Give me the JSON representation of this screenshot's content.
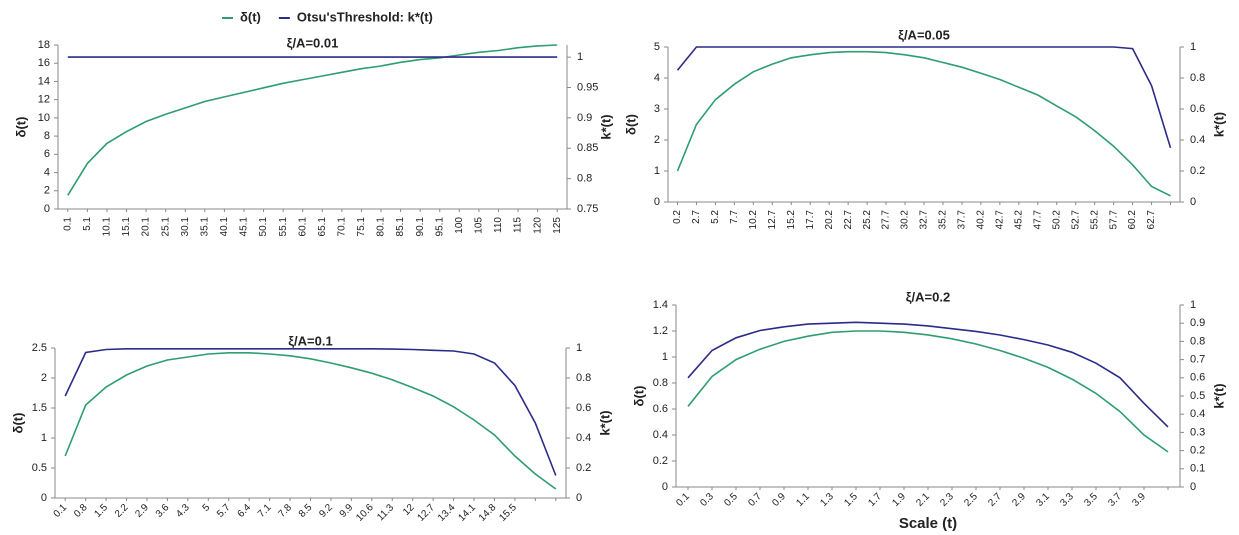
{
  "chart_data": [
    {
      "type": "line",
      "title": "ξ/A=0.01",
      "ylabel": "δ(t)",
      "y2label": "k*(t)",
      "legend": "top",
      "categories": [
        "0.1",
        "5.1",
        "10.1",
        "15.1",
        "20.1",
        "25.1",
        "30.1",
        "35.1",
        "40.1",
        "45.1",
        "50.1",
        "55.1",
        "60.1",
        "65.1",
        "70.1",
        "75.1",
        "80.1",
        "85.1",
        "90.1",
        "95.1",
        "100",
        "105",
        "110",
        "115",
        "120",
        "125"
      ],
      "series": [
        {
          "name": "δ(t)",
          "color": "#2e9e6e",
          "values": [
            1.5,
            5,
            7.2,
            8.5,
            9.6,
            10.4,
            11.1,
            11.8,
            12.3,
            12.8,
            13.3,
            13.8,
            14.2,
            14.6,
            15.0,
            15.4,
            15.7,
            16.1,
            16.4,
            16.6,
            16.9,
            17.2,
            17.4,
            17.7,
            17.9,
            18.0
          ]
        },
        {
          "name": "Otsu'sThreshold: k*(t)",
          "color": "#2b2b8a",
          "axis": "y2",
          "values": [
            1,
            1,
            1,
            1,
            1,
            1,
            1,
            1,
            1,
            1,
            1,
            1,
            1,
            1,
            1,
            1,
            1,
            1,
            1,
            1,
            1,
            1,
            1,
            1,
            1,
            1
          ]
        }
      ],
      "ylim": [
        0,
        18
      ],
      "yticks": [
        0,
        2,
        4,
        6,
        8,
        10,
        12,
        14,
        16,
        18
      ],
      "y2lim": [
        0.75,
        1.02
      ],
      "y2ticks": [
        0.75,
        0.8,
        0.85,
        0.9,
        0.95,
        1
      ]
    },
    {
      "type": "line",
      "title": "ξ/A=0.05",
      "ylabel": "δ(t)",
      "y2label": "k*(t)",
      "categories": [
        "0.2",
        "2.7",
        "5.2",
        "7.7",
        "10.2",
        "12.7",
        "15.2",
        "17.7",
        "20.2",
        "22.7",
        "25.2",
        "27.7",
        "30.2",
        "32.7",
        "35.2",
        "37.7",
        "40.2",
        "42.7",
        "45.2",
        "47.7",
        "50.2",
        "52.7",
        "55.2",
        "57.7",
        "60.2",
        "62.7",
        null
      ],
      "series": [
        {
          "color": "#2e9e6e",
          "values": [
            1.0,
            2.5,
            3.3,
            3.8,
            4.2,
            4.45,
            4.65,
            4.75,
            4.82,
            4.85,
            4.85,
            4.82,
            4.75,
            4.65,
            4.5,
            4.35,
            4.15,
            3.95,
            3.7,
            3.45,
            3.1,
            2.75,
            2.3,
            1.8,
            1.2,
            0.5,
            0.2
          ]
        },
        {
          "color": "#2b2b8a",
          "axis": "y2",
          "values": [
            0.85,
            1,
            1,
            1,
            1,
            1,
            1,
            1,
            1,
            1,
            1,
            1,
            1,
            1,
            1,
            1,
            1,
            1,
            1,
            1,
            1,
            1,
            1,
            1,
            0.99,
            0.75,
            0.35
          ]
        }
      ],
      "ylim": [
        0,
        5
      ],
      "yticks": [
        0,
        1,
        2,
        3,
        4,
        5
      ],
      "y2lim": [
        0,
        1
      ],
      "y2ticks": [
        0,
        0.2,
        0.4,
        0.6,
        0.8,
        1
      ]
    },
    {
      "type": "line",
      "title": "ξ/A=0.1",
      "ylabel": "δ(t)",
      "y2label": "k*(t)",
      "categories": [
        "0.1",
        "0.8",
        "1.5",
        "2.2",
        "2.9",
        "3.6",
        "4.3",
        "5",
        "5.7",
        "6.4",
        "7.1",
        "7.8",
        "8.5",
        "9.2",
        "9.9",
        "10.6",
        "11.3",
        "12",
        "12.7",
        "13.4",
        "14.1",
        "14.8",
        "15.5",
        null,
        null
      ],
      "series": [
        {
          "color": "#2e9e6e",
          "values": [
            0.7,
            1.55,
            1.85,
            2.05,
            2.2,
            2.3,
            2.35,
            2.4,
            2.42,
            2.42,
            2.4,
            2.37,
            2.32,
            2.25,
            2.17,
            2.08,
            1.97,
            1.84,
            1.7,
            1.52,
            1.3,
            1.05,
            0.7,
            0.4,
            0.15
          ]
        },
        {
          "color": "#2b2b8a",
          "axis": "y2",
          "values": [
            0.68,
            0.97,
            0.99,
            0.995,
            0.995,
            0.995,
            0.995,
            0.995,
            0.995,
            0.995,
            0.995,
            0.995,
            0.995,
            0.995,
            0.995,
            0.995,
            0.993,
            0.99,
            0.985,
            0.98,
            0.96,
            0.9,
            0.75,
            0.5,
            0.15
          ]
        }
      ],
      "ylim": [
        0,
        2.5
      ],
      "yticks": [
        0,
        0.5,
        1,
        1.5,
        2,
        2.5
      ],
      "y2lim": [
        0,
        1
      ],
      "y2ticks": [
        0,
        0.2,
        0.4,
        0.6,
        0.8,
        1
      ]
    },
    {
      "type": "line",
      "title": "ξ/A=0.2",
      "ylabel": "δ(t)",
      "y2label": "k*(t)",
      "xlabel": "Scale (t)",
      "categories": [
        "0.1",
        "0.3",
        "0.5",
        "0.7",
        "0.9",
        "1.1",
        "1.3",
        "1.5",
        "1.7",
        "1.9",
        "2.1",
        "2.3",
        "2.5",
        "2.7",
        "2.9",
        "3.1",
        "3.3",
        "3.5",
        "3.7",
        "3.9",
        null
      ],
      "series": [
        {
          "color": "#2e9e6e",
          "values": [
            0.62,
            0.85,
            0.98,
            1.06,
            1.12,
            1.16,
            1.19,
            1.2,
            1.2,
            1.19,
            1.17,
            1.14,
            1.1,
            1.05,
            0.99,
            0.92,
            0.83,
            0.72,
            0.58,
            0.4,
            0.27
          ]
        },
        {
          "color": "#2b2b8a",
          "axis": "y2",
          "values": [
            0.6,
            0.75,
            0.82,
            0.86,
            0.88,
            0.895,
            0.9,
            0.905,
            0.9,
            0.895,
            0.885,
            0.87,
            0.855,
            0.835,
            0.81,
            0.78,
            0.74,
            0.68,
            0.6,
            0.46,
            0.33
          ]
        }
      ],
      "ylim": [
        0,
        1.4
      ],
      "yticks": [
        0,
        0.2,
        0.4,
        0.6,
        0.8,
        1,
        1.2,
        1.4
      ],
      "y2lim": [
        0,
        1
      ],
      "y2ticks": [
        0,
        0.1,
        0.2,
        0.3,
        0.4,
        0.5,
        0.6,
        0.7,
        0.8,
        0.9,
        1
      ]
    }
  ]
}
